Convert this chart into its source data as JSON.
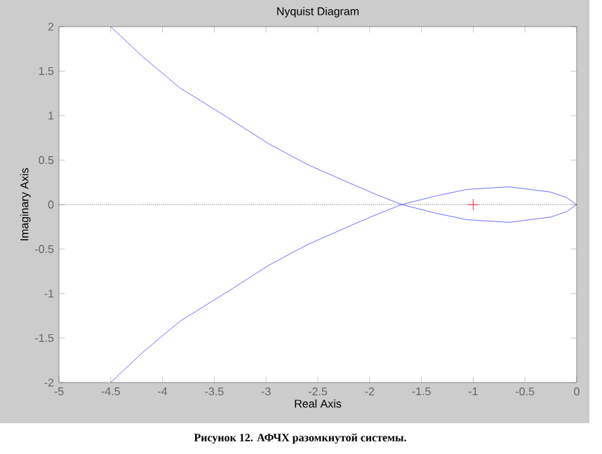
{
  "chart_data": {
    "type": "line",
    "title": "Nyquist Diagram",
    "xlabel": "Real Axis",
    "ylabel": "Imaginary Axis",
    "xlim": [
      -5,
      0
    ],
    "ylim": [
      -2,
      2
    ],
    "xticks": [
      -5,
      -4.5,
      -4,
      -3.5,
      -3,
      -2.5,
      -2,
      -1.5,
      -1,
      -0.5,
      0
    ],
    "yticks": [
      -2,
      -1.5,
      -1,
      -0.5,
      0,
      0.5,
      1,
      1.5,
      2
    ],
    "grid": false,
    "marker": "none",
    "line_style": "solid",
    "series": [
      {
        "color": "#4a4aff",
        "x": [
          -4.5,
          -4.2,
          -3.83,
          -3.4,
          -2.97,
          -2.6,
          -2.21,
          -1.95,
          -1.69,
          -1.35,
          -1.06,
          -0.65,
          -0.25,
          -0.1,
          0
        ],
        "values": [
          2,
          1.67,
          1.31,
          1.0,
          0.68,
          0.45,
          0.25,
          0.12,
          0,
          -0.1,
          -0.17,
          -0.2,
          -0.14,
          -0.08,
          0
        ]
      },
      {
        "color": "#4a4aff",
        "x": [
          -4.5,
          -4.2,
          -3.83,
          -3.4,
          -2.97,
          -2.6,
          -2.21,
          -1.95,
          -1.69,
          -1.35,
          -1.06,
          -0.65,
          -0.25,
          -0.1,
          0
        ],
        "values": [
          -2,
          -1.67,
          -1.31,
          -1.0,
          -0.68,
          -0.45,
          -0.25,
          -0.12,
          0,
          0.1,
          0.17,
          0.2,
          0.14,
          0.08,
          0
        ]
      },
      {
        "type": "scatter",
        "marker": "cross",
        "color": "#ff0000",
        "x": [
          -1
        ],
        "values": [
          0
        ]
      }
    ],
    "ref_lines": [
      {
        "axis": "y",
        "value": 0,
        "color": "#000000",
        "line_style": "dotted"
      }
    ],
    "annotations": [
      "Рисунок 12. АФЧХ разомкнутой системы."
    ]
  }
}
